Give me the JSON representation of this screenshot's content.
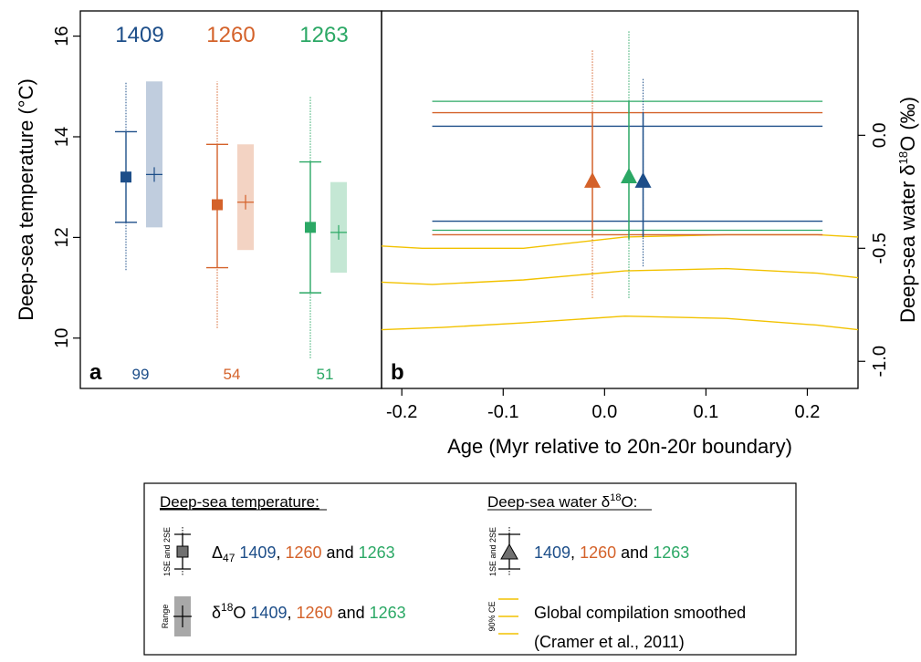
{
  "colors": {
    "1409": "#1d4e89",
    "1260": "#d4622a",
    "1263": "#2ba865",
    "cramer": "#f2c200"
  },
  "chart_data": [
    {
      "panel": "a",
      "type": "scatter",
      "ylabel": "Deep-sea temperature (°C)",
      "ylim": [
        9,
        16.5
      ],
      "yticks": [
        "10",
        "12",
        "14",
        "16"
      ],
      "sites": [
        "1409",
        "1260",
        "1263"
      ],
      "counts": [
        "99",
        "54",
        "51"
      ],
      "clumped": [
        {
          "site": "1409",
          "mean": 13.2,
          "se1": [
            12.3,
            14.1
          ],
          "se2": [
            11.35,
            15.1
          ]
        },
        {
          "site": "1260",
          "mean": 12.65,
          "se1": [
            11.4,
            13.85
          ],
          "se2": [
            10.2,
            15.1
          ]
        },
        {
          "site": "1263",
          "mean": 12.2,
          "se1": [
            10.9,
            13.5
          ],
          "se2": [
            9.6,
            14.8
          ]
        }
      ],
      "d18O_range": [
        {
          "site": "1409",
          "mean": 13.25,
          "range": [
            12.2,
            15.1
          ]
        },
        {
          "site": "1260",
          "mean": 12.7,
          "range": [
            11.75,
            13.85
          ]
        },
        {
          "site": "1263",
          "mean": 12.1,
          "range": [
            11.3,
            13.1
          ]
        }
      ]
    },
    {
      "panel": "b",
      "type": "scatter",
      "xlabel": "Age (Myr relative to 20n-20r boundary)",
      "ylabel": "Deep-sea water δ18O (‰)",
      "xlim": [
        -0.22,
        0.25
      ],
      "ylim": [
        -1.12,
        0.55
      ],
      "xticks": [
        "-0.2",
        "-0.1",
        "0.0",
        "0.1",
        "0.2"
      ],
      "yticks": [
        "0.0",
        "-0.5",
        "-1.0"
      ],
      "points": [
        {
          "site": "1260",
          "x": -0.012,
          "y": -0.2,
          "se1": [
            -0.45,
            0.1
          ],
          "se2": [
            -0.72,
            0.38
          ]
        },
        {
          "site": "1263",
          "x": 0.024,
          "y": -0.18,
          "se1": [
            -0.46,
            0.15
          ],
          "se2": [
            -0.72,
            0.46
          ]
        },
        {
          "site": "1409",
          "x": 0.038,
          "y": -0.2,
          "se1": [
            -0.45,
            0.1
          ],
          "se2": [
            -0.58,
            0.25
          ]
        }
      ],
      "range_lines": [
        {
          "site": "1263",
          "x": [
            -0.17,
            0.215
          ],
          "y": 0.15
        },
        {
          "site": "1260",
          "x": [
            -0.17,
            0.215
          ],
          "y": 0.1
        },
        {
          "site": "1409",
          "x": [
            -0.17,
            0.215
          ],
          "y": 0.04
        },
        {
          "site": "1409",
          "x": [
            -0.17,
            0.215
          ],
          "y": -0.38
        },
        {
          "site": "1263",
          "x": [
            -0.17,
            0.215
          ],
          "y": -0.42
        },
        {
          "site": "1260",
          "x": [
            -0.17,
            0.215
          ],
          "y": -0.44
        }
      ],
      "cramer": [
        {
          "x": [
            -0.22,
            -0.18,
            -0.08,
            0.02,
            0.12,
            0.21,
            0.25
          ],
          "y": [
            -0.49,
            -0.5,
            -0.5,
            -0.45,
            -0.44,
            -0.44,
            -0.45
          ]
        },
        {
          "x": [
            -0.22,
            -0.17,
            -0.08,
            0.02,
            0.12,
            0.21,
            0.25
          ],
          "y": [
            -0.65,
            -0.66,
            -0.64,
            -0.6,
            -0.59,
            -0.61,
            -0.63
          ]
        },
        {
          "x": [
            -0.22,
            -0.16,
            -0.08,
            0.02,
            0.12,
            0.21,
            0.25
          ],
          "y": [
            -0.86,
            -0.85,
            -0.83,
            -0.8,
            -0.81,
            -0.84,
            -0.86
          ]
        }
      ]
    }
  ],
  "panel_labels": {
    "a": "a",
    "b": "b"
  },
  "legend": {
    "temp_title": "Deep-sea temperature:",
    "water_title_prefix": "Deep-sea water ",
    "water_title_delta": "δ",
    "water_title_sup": "18",
    "water_title_suffix": "O:",
    "se_label": "1SE and 2SE",
    "range_label": "Range",
    "ce_label": "90% CE",
    "row1_prefix": "Δ",
    "row1_sub": "47",
    "row2_prefix": "δ",
    "row2_sup": "18",
    "row2_o": "O",
    "comma": ",",
    "and": "and",
    "site_1409": "1409",
    "site_1260": "1260",
    "site_1263": "1263",
    "cramer_line1": "Global compilation smoothed",
    "cramer_line2": "(Cramer et al., 2011)"
  }
}
